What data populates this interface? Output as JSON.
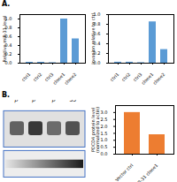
{
  "chart_data": [
    {
      "type": "bar",
      "title": "A.",
      "categories": [
        "ctrl1",
        "ctrl2",
        "ctrl3",
        "clone1",
        "clone2"
      ],
      "values": [
        0.02,
        0.02,
        0.01,
        1.0,
        0.55
      ],
      "color": "#5B9BD5",
      "ylabel": "Relative miR-31 level",
      "ylim": [
        0,
        1.1
      ],
      "yticks": [
        {
          "value": 0.0,
          "label": "0.0"
        },
        0.2,
        0.4,
        0.6,
        0.8,
        {
          "value": 1.0,
          "label": "1.0"
        }
      ]
    },
    {
      "type": "bar",
      "categories": [
        "ctrl1",
        "ctrl2",
        "ctrl3",
        "clone1",
        "clone2"
      ],
      "values": [
        0.02,
        0.02,
        0.01,
        0.85,
        0.28
      ],
      "color": "#5B9BD5",
      "ylabel": "Invasion relative to ctrl",
      "ylim": [
        0,
        1.0
      ],
      "yticks": [
        {
          "value": 0.0,
          "label": "0.0"
        },
        0.2,
        0.4,
        0.6,
        0.8,
        {
          "value": 1.0,
          "label": "1.0"
        }
      ]
    },
    {
      "type": "blot",
      "title": "B.",
      "categories": [
        "p⁰",
        "p¹¹",
        "pᶠ",
        "35"
      ],
      "values": [
        0.38,
        0.22,
        0.42,
        0.32
      ],
      "actin": [
        0.9,
        0.1
      ],
      "color": "#4472C4"
    },
    {
      "type": "bar",
      "categories": [
        "Vector ctrl",
        "miR-31 clone1"
      ],
      "values": [
        3.0,
        1.4
      ],
      "color": "#ED7D31",
      "ylabel": "PDCD4 protein level\n(normalized to actin)",
      "ylim": [
        0,
        3.5
      ],
      "yticks": [
        {
          "value": 0.0,
          "label": "0.0"
        },
        0.5,
        {
          "value": 1.0,
          "label": "1.0"
        },
        1.5,
        {
          "value": 2.0,
          "label": "2.0"
        },
        2.5,
        {
          "value": 3.0,
          "label": "3.0"
        }
      ]
    }
  ]
}
